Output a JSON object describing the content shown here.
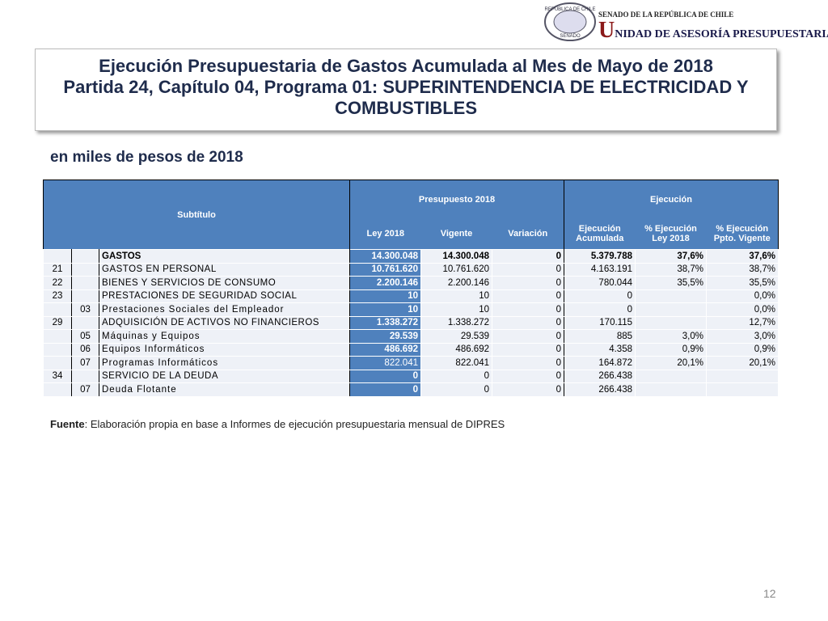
{
  "logo": {
    "emblem_top": "REPÚBLICA DE CHILE",
    "emblem_bottom": "SENADO",
    "line1": "SENADO DE LA REPÚBLICA DE CHILE",
    "line2": "UNIDAD DE ASESORÍA PRESUPUESTARIA"
  },
  "title": {
    "line1": "Ejecución Presupuestaria de Gastos Acumulada al Mes de Mayo de 2018",
    "line2": "Partida 24, Capítulo 04, Programa 01: SUPERINTENDENCIA DE ELECTRICIDAD Y COMBUSTIBLES"
  },
  "subtitle": "en miles de pesos de 2018",
  "table": {
    "header": {
      "subtitulo": "Subtítulo",
      "presupuesto": "Presupuesto 2018",
      "ejecucion": "Ejecución",
      "columns": [
        "Ley 2018",
        "Vigente",
        "Variación",
        "Ejecución Acumulada",
        "% Ejecución Ley 2018",
        "% Ejecución Ppto. Vigente"
      ]
    },
    "rows": [
      [
        null,
        null,
        "GASTOS",
        "14.300.048",
        "14.300.048",
        "0",
        "5.379.788",
        "37,6%",
        "37,6%"
      ],
      [
        "21",
        null,
        "GASTOS EN PERSONAL",
        "10.761.620",
        "10.761.620",
        "0",
        "4.163.191",
        "38,7%",
        "38,7%"
      ],
      [
        "22",
        null,
        "BIENES Y SERVICIOS DE CONSUMO",
        "2.200.146",
        "2.200.146",
        "0",
        "780.044",
        "35,5%",
        "35,5%"
      ],
      [
        "23",
        null,
        "PRESTACIONES DE SEGURIDAD SOCIAL",
        "10",
        "10",
        "0",
        "0",
        null,
        "0,0%"
      ],
      [
        null,
        "03",
        "Prestaciones Sociales del Empleador",
        "10",
        "10",
        "0",
        "0",
        null,
        "0,0%"
      ],
      [
        "29",
        null,
        "ADQUISICIÓN DE ACTIVOS NO FINANCIEROS",
        "1.338.272",
        "1.338.272",
        "0",
        "170.115",
        null,
        "12,7%"
      ],
      [
        null,
        "05",
        "Máquinas y Equipos",
        "29.539",
        "29.539",
        "0",
        "885",
        "3,0%",
        "3,0%"
      ],
      [
        null,
        "06",
        "Equipos Informáticos",
        "486.692",
        "486.692",
        "0",
        "4.358",
        "0,9%",
        "0,9%"
      ],
      [
        null,
        "07",
        "Programas Informáticos",
        "822.041",
        "822.041",
        "0",
        "164.872",
        "20,1%",
        "20,1%"
      ],
      [
        "34",
        null,
        "SERVICIO DE LA DEUDA",
        "0",
        "0",
        "0",
        "266.438",
        null,
        null
      ],
      [
        null,
        "07",
        "Deuda Flotante",
        "0",
        "0",
        "0",
        "266.438",
        null,
        null
      ]
    ]
  },
  "source": {
    "label": "Fuente",
    "text": ": Elaboración propia en base  a Informes de ejecución presupuestaria mensual de DIPRES"
  },
  "page_number": "12"
}
